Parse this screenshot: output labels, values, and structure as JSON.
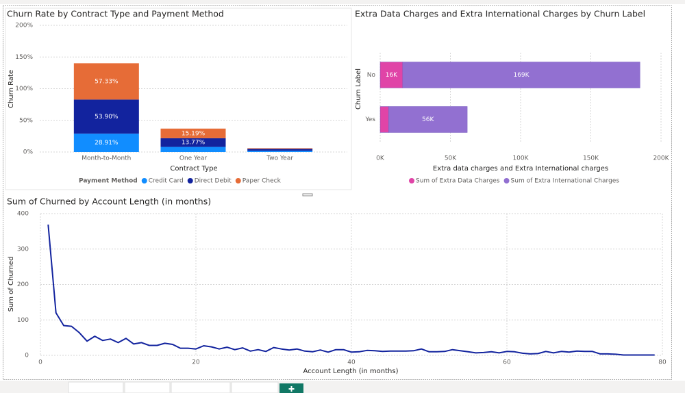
{
  "chart_data": [
    {
      "type": "bar",
      "stacked": true,
      "title": "Churn Rate by Contract Type and Payment Method",
      "x_label": "Contract Type",
      "y_label": "Churn Rate",
      "legend_title": "Payment Method",
      "categories": [
        "Month-to-Month",
        "One Year",
        "Two Year"
      ],
      "series": [
        {
          "name": "Credit Card",
          "color": "#118dff",
          "values": [
            28.91,
            8,
            2
          ],
          "value_labels": [
            "28.91%",
            null,
            null
          ]
        },
        {
          "name": "Direct Debit",
          "color": "#12239e",
          "values": [
            53.9,
            13.77,
            3
          ],
          "value_labels": [
            "53.90%",
            "13.77%",
            null
          ]
        },
        {
          "name": "Paper Check",
          "color": "#e66c37",
          "values": [
            57.33,
            15.19,
            1
          ],
          "value_labels": [
            "57.33%",
            "15.19%",
            null
          ]
        }
      ],
      "ylim": [
        0,
        200
      ],
      "yticks": [
        {
          "value": 0,
          "label": "0%"
        },
        {
          "value": 50,
          "label": "50%"
        },
        {
          "value": 100,
          "label": "100%"
        },
        {
          "value": 150,
          "label": "150%"
        },
        {
          "value": 200,
          "label": "200%"
        }
      ],
      "grid": true
    },
    {
      "type": "barh",
      "stacked": true,
      "title": "Extra Data Charges and Extra International Charges by Churn Label",
      "x_label": "Extra data charges and Extra International charges",
      "y_label": "Churn Label",
      "categories": [
        "No",
        "Yes"
      ],
      "series": [
        {
          "name": "Sum of Extra Data Charges",
          "color": "#e044a7",
          "values": [
            16000,
            6000
          ],
          "value_labels": [
            "16K",
            null
          ]
        },
        {
          "name": "Sum of Extra International Charges",
          "color": "#9270d1",
          "values": [
            169000,
            56000
          ],
          "value_labels": [
            "169K",
            "56K"
          ]
        }
      ],
      "xlim": [
        0,
        200000
      ],
      "xticks": [
        {
          "value": 0,
          "label": "0K"
        },
        {
          "value": 50000,
          "label": "50K"
        },
        {
          "value": 100000,
          "label": "100K"
        },
        {
          "value": 150000,
          "label": "150K"
        },
        {
          "value": 200000,
          "label": "200K"
        }
      ],
      "grid": true
    },
    {
      "type": "line",
      "title": "Sum of Churned by Account Length (in months)",
      "x_label": "Account Length (in months)",
      "y_label": "Sum of Churned",
      "color": "#12239e",
      "x": [
        1,
        2,
        3,
        4,
        5,
        6,
        7,
        8,
        9,
        10,
        11,
        12,
        13,
        14,
        15,
        16,
        17,
        18,
        19,
        20,
        21,
        22,
        23,
        24,
        25,
        26,
        27,
        28,
        29,
        30,
        31,
        32,
        33,
        34,
        35,
        36,
        37,
        38,
        39,
        40,
        41,
        42,
        43,
        44,
        45,
        46,
        47,
        48,
        49,
        50,
        51,
        52,
        53,
        54,
        55,
        56,
        57,
        58,
        59,
        60,
        61,
        62,
        63,
        64,
        65,
        66,
        67,
        68,
        69,
        70,
        71,
        72,
        73,
        74,
        75,
        76,
        77,
        78,
        79
      ],
      "values": [
        369,
        120,
        84,
        82,
        64,
        40,
        54,
        42,
        46,
        36,
        48,
        32,
        36,
        28,
        28,
        34,
        31,
        20,
        20,
        18,
        27,
        24,
        18,
        23,
        16,
        21,
        12,
        16,
        11,
        22,
        18,
        15,
        18,
        12,
        10,
        15,
        9,
        16,
        16,
        9,
        10,
        14,
        13,
        11,
        12,
        12,
        12,
        13,
        18,
        10,
        10,
        11,
        16,
        13,
        10,
        7,
        8,
        10,
        7,
        11,
        10,
        6,
        4,
        5,
        11,
        7,
        11,
        9,
        12,
        11,
        11,
        4,
        4,
        3,
        1,
        1,
        1,
        1,
        1
      ],
      "xlim": [
        0,
        80
      ],
      "xticks": [
        0,
        20,
        40,
        60,
        80
      ],
      "ylim": [
        0,
        400
      ],
      "yticks": [
        0,
        100,
        200,
        300,
        400
      ],
      "grid": true
    }
  ]
}
